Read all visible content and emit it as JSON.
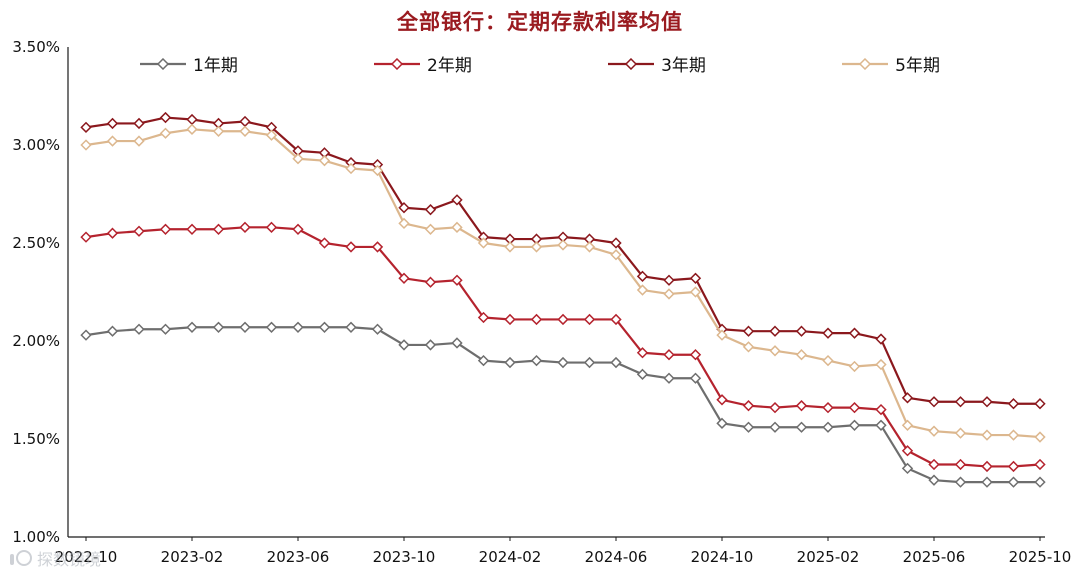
{
  "chart_data": {
    "type": "line",
    "title": "全部银行：定期存款利率均值",
    "title_color": "#9a1b20",
    "xlabel": "",
    "ylabel": "",
    "ylim": [
      1.0,
      3.5
    ],
    "y_tick_step": 0.5,
    "y_tick_labels": [
      "3.50%",
      "3.00%",
      "2.50%",
      "2.00%",
      "1.50%",
      "1.00%"
    ],
    "x_tick_every": 4,
    "grid": false,
    "legend_position": "top",
    "x": [
      "2022-10",
      "2022-11",
      "2022-12",
      "2023-01",
      "2023-02",
      "2023-03",
      "2023-04",
      "2023-05",
      "2023-06",
      "2023-07",
      "2023-08",
      "2023-09",
      "2023-10",
      "2023-11",
      "2023-12",
      "2024-01",
      "2024-02",
      "2024-03",
      "2024-04",
      "2024-05",
      "2024-06",
      "2024-07",
      "2024-08",
      "2024-09",
      "2024-10",
      "2024-11",
      "2024-12",
      "2025-01",
      "2025-02",
      "2025-03",
      "2025-04",
      "2025-05",
      "2025-06",
      "2025-07",
      "2025-08",
      "2025-09",
      "2025-10"
    ],
    "series": [
      {
        "name": "1年期",
        "color": "#6e6e6e",
        "marker": "diamond-open",
        "values": [
          2.03,
          2.05,
          2.06,
          2.06,
          2.07,
          2.07,
          2.07,
          2.07,
          2.07,
          2.07,
          2.07,
          2.06,
          1.98,
          1.98,
          1.99,
          1.9,
          1.89,
          1.9,
          1.89,
          1.89,
          1.89,
          1.83,
          1.81,
          1.81,
          1.58,
          1.56,
          1.56,
          1.56,
          1.56,
          1.57,
          1.57,
          1.35,
          1.29,
          1.28,
          1.28,
          1.28,
          1.28
        ]
      },
      {
        "name": "2年期",
        "color": "#b5232e",
        "marker": "diamond-open",
        "values": [
          2.53,
          2.55,
          2.56,
          2.57,
          2.57,
          2.57,
          2.58,
          2.58,
          2.57,
          2.5,
          2.48,
          2.48,
          2.32,
          2.3,
          2.31,
          2.12,
          2.11,
          2.11,
          2.11,
          2.11,
          2.11,
          1.94,
          1.93,
          1.93,
          1.7,
          1.67,
          1.66,
          1.67,
          1.66,
          1.66,
          1.65,
          1.44,
          1.37,
          1.37,
          1.36,
          1.36,
          1.37
        ]
      },
      {
        "name": "3年期",
        "color": "#8b181d",
        "marker": "diamond-open",
        "values": [
          3.09,
          3.11,
          3.11,
          3.14,
          3.13,
          3.11,
          3.12,
          3.09,
          2.97,
          2.96,
          2.91,
          2.9,
          2.68,
          2.67,
          2.72,
          2.53,
          2.52,
          2.52,
          2.53,
          2.52,
          2.5,
          2.33,
          2.31,
          2.32,
          2.06,
          2.05,
          2.05,
          2.05,
          2.04,
          2.04,
          2.01,
          1.71,
          1.69,
          1.69,
          1.69,
          1.68,
          1.68
        ]
      },
      {
        "name": "5年期",
        "color": "#dcb78e",
        "marker": "diamond-open",
        "values": [
          3.0,
          3.02,
          3.02,
          3.06,
          3.08,
          3.07,
          3.07,
          3.05,
          2.93,
          2.92,
          2.88,
          2.87,
          2.6,
          2.57,
          2.58,
          2.5,
          2.48,
          2.48,
          2.49,
          2.48,
          2.44,
          2.26,
          2.24,
          2.25,
          2.03,
          1.97,
          1.95,
          1.93,
          1.9,
          1.87,
          1.88,
          1.57,
          1.54,
          1.53,
          1.52,
          1.52,
          1.51
        ]
      }
    ]
  },
  "watermark": {
    "text": "探数镜境"
  }
}
